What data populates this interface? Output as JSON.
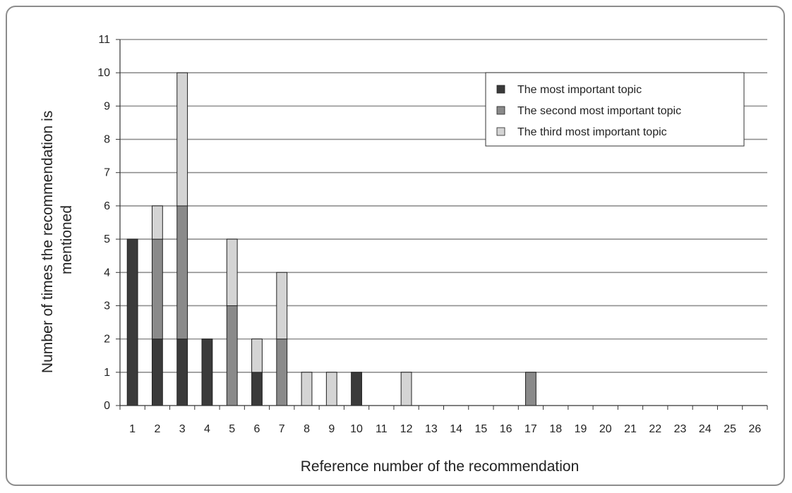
{
  "chart_data": {
    "type": "bar",
    "stacked": true,
    "categories": [
      "1",
      "2",
      "3",
      "4",
      "5",
      "6",
      "7",
      "8",
      "9",
      "10",
      "11",
      "12",
      "13",
      "14",
      "15",
      "16",
      "17",
      "18",
      "19",
      "20",
      "21",
      "22",
      "23",
      "24",
      "25",
      "26"
    ],
    "x_tick_labels": [
      "1",
      "2",
      "3",
      "4",
      "5",
      "6",
      "7",
      "8",
      "9",
      "10",
      "11",
      "12",
      "13",
      "14",
      "15",
      "16",
      "17",
      "18",
      "19",
      "20",
      "21",
      "22",
      "23",
      "24",
      "25",
      "26"
    ],
    "bar_categories": [
      "1",
      "2",
      "3",
      "4",
      "5",
      "6",
      "7",
      "8",
      "9",
      "10",
      "11",
      "12",
      "13",
      "14",
      "15",
      "16",
      "17",
      "18",
      "19",
      "20",
      "21",
      "22",
      "23",
      "24",
      "25",
      "26"
    ],
    "series": [
      {
        "name": "The most important topic",
        "color": "#3a3a3a",
        "values": [
          5,
          2,
          2,
          2,
          0,
          1,
          0,
          0,
          0,
          1,
          0,
          0,
          0,
          0,
          0,
          0,
          0,
          0,
          0,
          0,
          0,
          0,
          0,
          0,
          0,
          0
        ]
      },
      {
        "name": "The second most important topic",
        "color": "#8a8a8a",
        "values": [
          0,
          3,
          4,
          0,
          3,
          0,
          2,
          0,
          0,
          0,
          0,
          0,
          0,
          0,
          0,
          0,
          1,
          0,
          0,
          0,
          0,
          0,
          0,
          0,
          0,
          0
        ]
      },
      {
        "name": "The third most important topic",
        "color": "#d4d4d4",
        "values": [
          0,
          1,
          4,
          0,
          2,
          1,
          2,
          1,
          1,
          0,
          0,
          1,
          0,
          0,
          0,
          0,
          0,
          0,
          0,
          0,
          0,
          0,
          0,
          0,
          0,
          0
        ]
      }
    ],
    "xlabel": "Reference number of the recommendation",
    "ylabel_lines": [
      "Number of times the recommendation is",
      "mentioned"
    ],
    "ylim": [
      0,
      11
    ],
    "y_ticks": [
      0,
      1,
      2,
      3,
      4,
      5,
      6,
      7,
      8,
      9,
      10,
      11
    ],
    "grid": true,
    "legend_position": "top-right"
  }
}
